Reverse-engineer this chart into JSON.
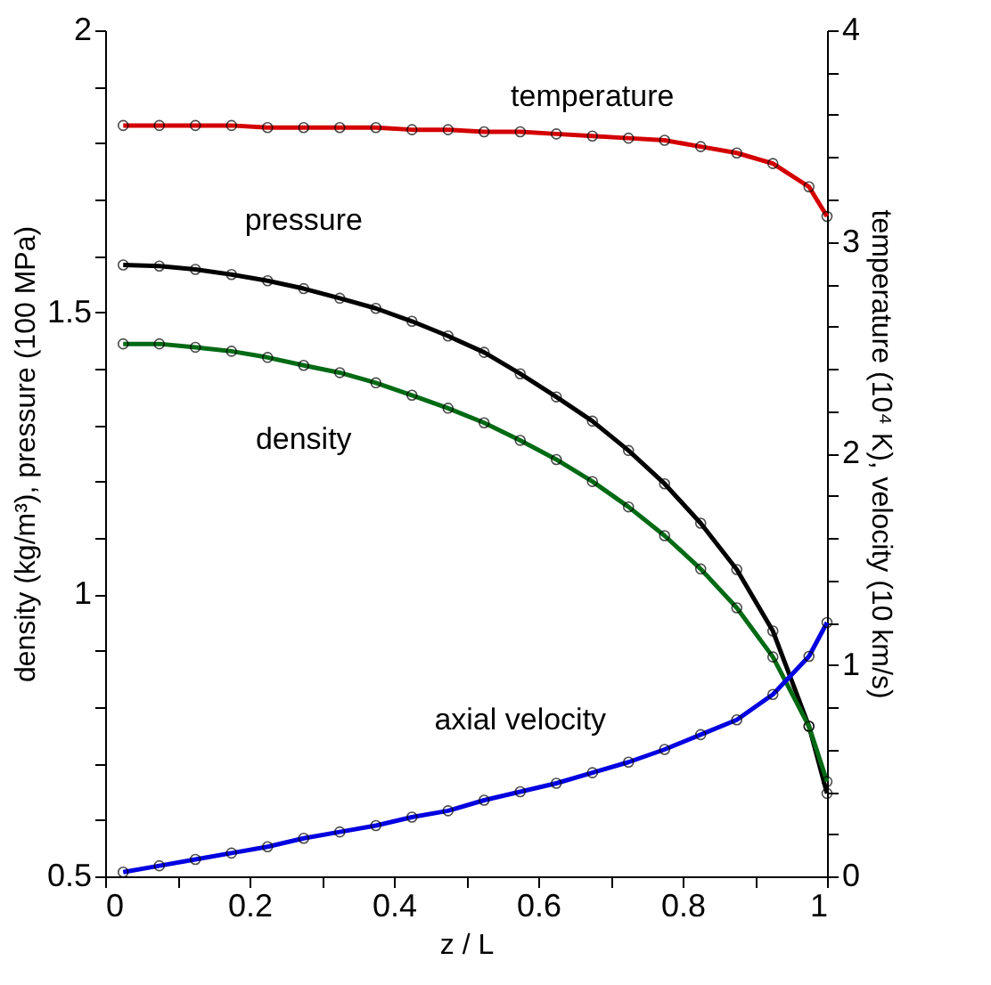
{
  "chart_data": {
    "type": "line",
    "xlabel": "z / L",
    "ylabel": "density (kg/m³), pressure (100 MPa)",
    "y2label": "temperature (10⁴ K), velocity (10 km/s)",
    "x": [
      0.025,
      0.075,
      0.125,
      0.175,
      0.225,
      0.275,
      0.325,
      0.375,
      0.425,
      0.475,
      0.525,
      0.575,
      0.625,
      0.675,
      0.725,
      0.775,
      0.825,
      0.875,
      0.925,
      0.975,
      1.0
    ],
    "series": [
      {
        "name": "temperature",
        "color": "#d40000",
        "axis": "y2",
        "values": [
          3.55,
          3.55,
          3.55,
          3.55,
          3.54,
          3.54,
          3.54,
          3.54,
          3.53,
          3.53,
          3.52,
          3.52,
          3.51,
          3.5,
          3.49,
          3.48,
          3.45,
          3.42,
          3.37,
          3.26,
          3.12
        ]
      },
      {
        "name": "pressure",
        "color": "#000000",
        "values": [
          1.584,
          1.582,
          1.576,
          1.567,
          1.556,
          1.542,
          1.525,
          1.507,
          1.484,
          1.458,
          1.429,
          1.391,
          1.35,
          1.307,
          1.255,
          1.196,
          1.126,
          1.044,
          0.935,
          0.766,
          0.647
        ]
      },
      {
        "name": "density",
        "color": "#006a14",
        "values": [
          1.444,
          1.444,
          1.438,
          1.431,
          1.42,
          1.406,
          1.393,
          1.375,
          1.353,
          1.33,
          1.304,
          1.273,
          1.239,
          1.2,
          1.155,
          1.104,
          1.045,
          0.976,
          0.889,
          0.766,
          0.668
        ]
      },
      {
        "name": "axial velocity",
        "color": "#0000e0",
        "axis": "y2",
        "values": [
          0.02,
          0.05,
          0.08,
          0.11,
          0.14,
          0.18,
          0.21,
          0.24,
          0.28,
          0.31,
          0.36,
          0.4,
          0.44,
          0.49,
          0.54,
          0.6,
          0.67,
          0.74,
          0.86,
          1.04,
          1.2
        ]
      }
    ],
    "xlim": [
      0,
      1
    ],
    "xticks": [
      0,
      {
        "value": 0.1,
        "label": null
      },
      0.2,
      {
        "value": 0.3,
        "label": null
      },
      0.4,
      {
        "value": 0.5,
        "label": null
      },
      0.6,
      {
        "value": 0.7,
        "label": null
      },
      0.8,
      {
        "value": 0.9,
        "label": null
      },
      1
    ],
    "ylim": [
      0.5,
      2
    ],
    "yticks": [
      0.5,
      {
        "value": 0.6,
        "label": null
      },
      {
        "value": 0.7,
        "label": null
      },
      {
        "value": 0.8,
        "label": null
      },
      {
        "value": 0.9,
        "label": null
      },
      1,
      {
        "value": 1.1,
        "label": null
      },
      {
        "value": 1.2,
        "label": null
      },
      {
        "value": 1.3,
        "label": null
      },
      {
        "value": 1.4,
        "label": null
      },
      1.5,
      {
        "value": 1.6,
        "label": null
      },
      {
        "value": 1.7,
        "label": null
      },
      {
        "value": 1.8,
        "label": null
      },
      {
        "value": 1.9,
        "label": null
      },
      2
    ],
    "y2lim": [
      0,
      4
    ],
    "y2ticks": [
      0,
      {
        "value": 0.2,
        "label": null
      },
      {
        "value": 0.4,
        "label": null
      },
      {
        "value": 0.6,
        "label": null
      },
      {
        "value": 0.8,
        "label": null
      },
      1,
      {
        "value": 1.2,
        "label": null
      },
      {
        "value": 1.4,
        "label": null
      },
      {
        "value": 1.6,
        "label": null
      },
      {
        "value": 1.8,
        "label": null
      },
      2,
      {
        "value": 2.2,
        "label": null
      },
      {
        "value": 2.4,
        "label": null
      },
      {
        "value": 2.6,
        "label": null
      },
      {
        "value": 2.8,
        "label": null
      },
      3,
      {
        "value": 3.2,
        "label": null
      },
      {
        "value": 3.4,
        "label": null
      },
      {
        "value": 3.6,
        "label": null
      },
      {
        "value": 3.8,
        "label": null
      },
      4
    ],
    "marker": "circle",
    "line_style": "solid",
    "grid": false
  }
}
